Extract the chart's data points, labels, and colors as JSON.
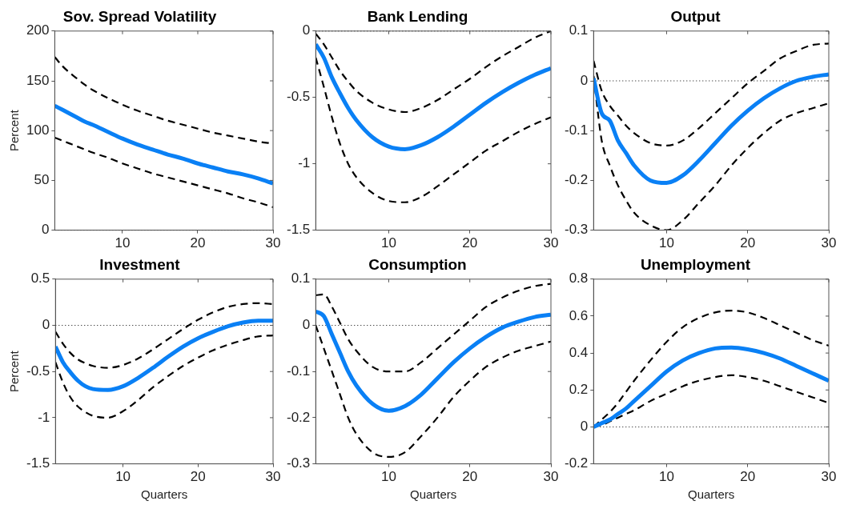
{
  "chart_data": [
    {
      "type": "line",
      "title": "Sov. Spread Volatility",
      "ylabel": "Percent",
      "x": [
        1,
        2,
        3,
        4,
        5,
        6,
        8,
        10,
        12,
        14,
        16,
        18,
        20,
        22,
        24,
        26,
        28,
        30
      ],
      "xlim": [
        1,
        30
      ],
      "xticks": [
        10,
        20,
        30
      ],
      "ylim": [
        0,
        200
      ],
      "yticks": [
        0,
        50,
        100,
        150,
        200
      ],
      "series": [
        {
          "color": "#000000",
          "line_style": "dashed",
          "values": [
            174,
            165,
            158,
            152,
            146,
            141,
            133,
            126,
            120,
            115,
            110,
            106,
            102,
            98,
            95,
            92,
            89,
            87
          ]
        },
        {
          "color": "#000000",
          "line_style": "dashed",
          "values": [
            93,
            90,
            87,
            84,
            81,
            78,
            73,
            67,
            62,
            57,
            53,
            49,
            45,
            41,
            37,
            32,
            28,
            23
          ]
        },
        {
          "color": "#0a80f5",
          "line_style": "solid",
          "values": [
            125,
            121,
            117,
            113,
            109,
            106,
            99,
            92,
            86,
            81,
            76,
            72,
            67,
            63,
            59,
            56,
            52,
            47
          ]
        }
      ],
      "ref_lines": [
        {
          "axis": "y",
          "value": 0,
          "color": "#000000",
          "line_style": "dotted"
        }
      ]
    },
    {
      "type": "line",
      "title": "Bank Lending",
      "x": [
        1,
        2,
        3,
        4,
        5,
        6,
        8,
        10,
        12,
        14,
        16,
        18,
        20,
        22,
        24,
        26,
        28,
        30
      ],
      "xlim": [
        1,
        30
      ],
      "xticks": [
        10,
        20,
        30
      ],
      "ylim": [
        -1.5,
        0
      ],
      "yticks": [
        -1.5,
        -1,
        -0.5,
        0
      ],
      "series": [
        {
          "color": "#000000",
          "line_style": "dashed",
          "values": [
            -0.02,
            -0.1,
            -0.2,
            -0.3,
            -0.38,
            -0.45,
            -0.54,
            -0.59,
            -0.61,
            -0.58,
            -0.52,
            -0.44,
            -0.36,
            -0.27,
            -0.19,
            -0.12,
            -0.05,
            0
          ]
        },
        {
          "color": "#000000",
          "line_style": "dashed",
          "values": [
            -0.2,
            -0.42,
            -0.65,
            -0.85,
            -1.0,
            -1.1,
            -1.22,
            -1.28,
            -1.29,
            -1.25,
            -1.17,
            -1.08,
            -0.99,
            -0.9,
            -0.83,
            -0.76,
            -0.7,
            -0.65
          ]
        },
        {
          "color": "#0a80f5",
          "line_style": "solid",
          "values": [
            -0.1,
            -0.2,
            -0.35,
            -0.47,
            -0.58,
            -0.67,
            -0.8,
            -0.87,
            -0.89,
            -0.86,
            -0.8,
            -0.72,
            -0.63,
            -0.54,
            -0.46,
            -0.39,
            -0.33,
            -0.28
          ]
        }
      ],
      "ref_lines": [
        {
          "axis": "y",
          "value": 0,
          "color": "#000000",
          "line_style": "dotted"
        }
      ]
    },
    {
      "type": "line",
      "title": "Output",
      "x": [
        1,
        2,
        3,
        4,
        5,
        6,
        8,
        10,
        12,
        14,
        16,
        18,
        20,
        22,
        24,
        26,
        28,
        30
      ],
      "xlim": [
        1,
        30
      ],
      "xticks": [
        10,
        20,
        30
      ],
      "ylim": [
        -0.3,
        0.1
      ],
      "yticks": [
        -0.3,
        -0.2,
        -0.1,
        0,
        0.1
      ],
      "series": [
        {
          "color": "#000000",
          "line_style": "dashed",
          "values": [
            0.04,
            -0.02,
            -0.05,
            -0.07,
            -0.09,
            -0.105,
            -0.125,
            -0.13,
            -0.12,
            -0.095,
            -0.065,
            -0.035,
            -0.005,
            0.02,
            0.045,
            0.06,
            0.072,
            0.075
          ]
        },
        {
          "color": "#000000",
          "line_style": "dashed",
          "values": [
            0.01,
            -0.12,
            -0.17,
            -0.21,
            -0.24,
            -0.265,
            -0.29,
            -0.3,
            -0.28,
            -0.245,
            -0.21,
            -0.17,
            -0.135,
            -0.105,
            -0.08,
            -0.065,
            -0.055,
            -0.045
          ]
        },
        {
          "color": "#0a80f5",
          "line_style": "solid",
          "values": [
            0.005,
            -0.065,
            -0.08,
            -0.12,
            -0.145,
            -0.17,
            -0.2,
            -0.205,
            -0.19,
            -0.16,
            -0.125,
            -0.09,
            -0.06,
            -0.035,
            -0.015,
            0,
            0.008,
            0.013
          ]
        }
      ],
      "ref_lines": [
        {
          "axis": "y",
          "value": 0,
          "color": "#000000",
          "line_style": "dotted"
        }
      ]
    },
    {
      "type": "line",
      "title": "Investment",
      "xlabel": "Quarters",
      "ylabel": "Percent",
      "x": [
        1,
        2,
        3,
        4,
        5,
        6,
        8,
        10,
        12,
        14,
        16,
        18,
        20,
        22,
        24,
        26,
        28,
        30
      ],
      "xlim": [
        1,
        30
      ],
      "xticks": [
        10,
        20,
        30
      ],
      "ylim": [
        -1.5,
        0.5
      ],
      "yticks": [
        -1.5,
        -1,
        -0.5,
        0,
        0.5
      ],
      "series": [
        {
          "color": "#000000",
          "line_style": "dashed",
          "values": [
            -0.07,
            -0.2,
            -0.3,
            -0.37,
            -0.41,
            -0.44,
            -0.46,
            -0.43,
            -0.36,
            -0.26,
            -0.15,
            -0.04,
            0.06,
            0.14,
            0.2,
            0.23,
            0.24,
            0.23
          ]
        },
        {
          "color": "#000000",
          "line_style": "dashed",
          "values": [
            -0.4,
            -0.62,
            -0.78,
            -0.88,
            -0.94,
            -0.98,
            -1.0,
            -0.93,
            -0.81,
            -0.67,
            -0.55,
            -0.44,
            -0.35,
            -0.27,
            -0.21,
            -0.16,
            -0.12,
            -0.11
          ]
        },
        {
          "color": "#0a80f5",
          "line_style": "solid",
          "values": [
            -0.23,
            -0.4,
            -0.51,
            -0.6,
            -0.66,
            -0.69,
            -0.7,
            -0.66,
            -0.57,
            -0.46,
            -0.34,
            -0.23,
            -0.14,
            -0.07,
            -0.01,
            0.03,
            0.05,
            0.05
          ]
        }
      ],
      "ref_lines": [
        {
          "axis": "y",
          "value": 0,
          "color": "#000000",
          "line_style": "dotted"
        }
      ]
    },
    {
      "type": "line",
      "title": "Consumption",
      "xlabel": "Quarters",
      "x": [
        1,
        2,
        3,
        4,
        5,
        6,
        8,
        10,
        12,
        14,
        16,
        18,
        20,
        22,
        24,
        26,
        28,
        30
      ],
      "xlim": [
        1,
        30
      ],
      "xticks": [
        10,
        20,
        30
      ],
      "ylim": [
        -0.3,
        0.1
      ],
      "yticks": [
        -0.3,
        -0.2,
        -0.1,
        0,
        0.1
      ],
      "series": [
        {
          "color": "#000000",
          "line_style": "dashed",
          "values": [
            0.065,
            0.067,
            0.04,
            0.005,
            -0.03,
            -0.055,
            -0.09,
            -0.1,
            -0.1,
            -0.08,
            -0.05,
            -0.02,
            0.01,
            0.04,
            0.06,
            0.075,
            0.085,
            0.09
          ]
        },
        {
          "color": "#000000",
          "line_style": "dashed",
          "values": [
            0,
            -0.05,
            -0.1,
            -0.15,
            -0.2,
            -0.235,
            -0.275,
            -0.285,
            -0.275,
            -0.24,
            -0.2,
            -0.155,
            -0.12,
            -0.09,
            -0.07,
            -0.055,
            -0.045,
            -0.035
          ]
        },
        {
          "color": "#0a80f5",
          "line_style": "solid",
          "values": [
            0.03,
            0.02,
            -0.02,
            -0.06,
            -0.1,
            -0.13,
            -0.17,
            -0.185,
            -0.175,
            -0.15,
            -0.115,
            -0.08,
            -0.05,
            -0.025,
            -0.005,
            0.008,
            0.018,
            0.023
          ]
        }
      ],
      "ref_lines": [
        {
          "axis": "y",
          "value": 0,
          "color": "#000000",
          "line_style": "dotted"
        }
      ]
    },
    {
      "type": "line",
      "title": "Unemployment",
      "xlabel": "Quarters",
      "x": [
        1,
        2,
        3,
        4,
        5,
        6,
        8,
        10,
        12,
        14,
        16,
        18,
        20,
        22,
        24,
        26,
        28,
        30
      ],
      "xlim": [
        1,
        30
      ],
      "xticks": [
        10,
        20,
        30
      ],
      "ylim": [
        -0.2,
        0.8
      ],
      "yticks": [
        -0.2,
        0,
        0.2,
        0.4,
        0.6,
        0.8
      ],
      "series": [
        {
          "color": "#000000",
          "line_style": "dashed",
          "values": [
            0,
            0.04,
            0.08,
            0.13,
            0.19,
            0.25,
            0.36,
            0.46,
            0.54,
            0.59,
            0.62,
            0.63,
            0.62,
            0.59,
            0.55,
            0.51,
            0.47,
            0.44
          ]
        },
        {
          "color": "#000000",
          "line_style": "dashed",
          "values": [
            0,
            0.01,
            0.03,
            0.05,
            0.07,
            0.09,
            0.14,
            0.18,
            0.22,
            0.25,
            0.27,
            0.28,
            0.27,
            0.25,
            0.22,
            0.19,
            0.16,
            0.13
          ]
        },
        {
          "color": "#0a80f5",
          "line_style": "solid",
          "values": [
            0,
            0.02,
            0.04,
            0.07,
            0.1,
            0.14,
            0.22,
            0.3,
            0.36,
            0.4,
            0.425,
            0.43,
            0.42,
            0.4,
            0.37,
            0.33,
            0.29,
            0.25
          ]
        }
      ],
      "ref_lines": [
        {
          "axis": "y",
          "value": 0,
          "color": "#000000",
          "line_style": "dotted"
        }
      ]
    }
  ]
}
